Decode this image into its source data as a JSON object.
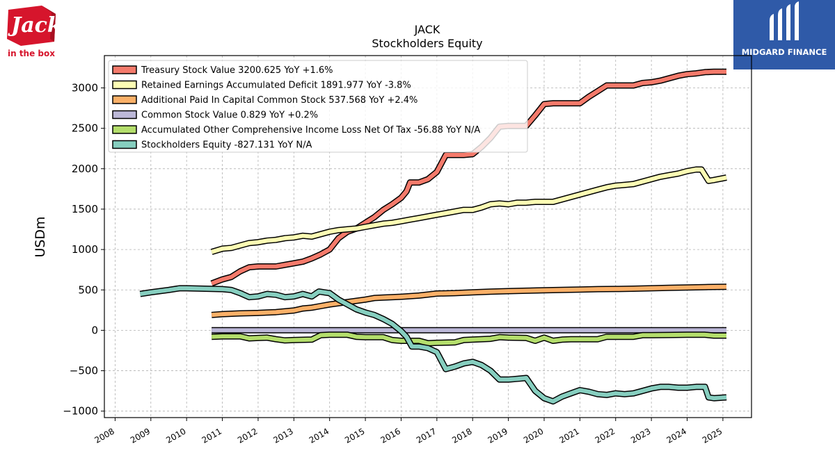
{
  "header": {
    "left_logo_text": "in the box",
    "left_logo_word": "Jack",
    "right_logo_text": "MIDGARD FINANCE"
  },
  "colors": {
    "treasury": "#f47a6b",
    "retained": "#fdfdb4",
    "apic": "#fbb068",
    "common": "#bcb8d8",
    "aoci": "#b4de6c",
    "equity": "#86cebf",
    "outline": "#000000",
    "brand_red": "#d6152c",
    "brand_blue": "#2f5aa8"
  },
  "chart_data": {
    "type": "line",
    "title": "JACK",
    "subtitle": "Stockholders  Equity",
    "ylabel": "USDm",
    "xlabel": "",
    "xlim": [
      2007.7,
      2025.8
    ],
    "ylim": [
      -1080,
      3400
    ],
    "yticks": [
      -1000,
      -500,
      0,
      500,
      1000,
      1500,
      2000,
      2500,
      3000
    ],
    "ytick_labels": [
      "−1000",
      "−500",
      "0",
      "500",
      "1000",
      "1500",
      "2000",
      "2500",
      "3000"
    ],
    "xticks": [
      2008,
      2009,
      2010,
      2011,
      2012,
      2013,
      2014,
      2015,
      2016,
      2017,
      2018,
      2019,
      2020,
      2021,
      2022,
      2023,
      2024,
      2025
    ],
    "grid": true,
    "legend_position": "top-left",
    "series": [
      {
        "name": "Treasury Stock Value",
        "legend": "Treasury Stock Value  3200.625 YoY +1.6%",
        "color_key": "treasury",
        "points": [
          [
            2010.7,
            580
          ],
          [
            2011.0,
            630
          ],
          [
            2011.25,
            660
          ],
          [
            2011.5,
            730
          ],
          [
            2011.75,
            780
          ],
          [
            2012.0,
            790
          ],
          [
            2012.5,
            790
          ],
          [
            2012.75,
            810
          ],
          [
            2013.0,
            830
          ],
          [
            2013.25,
            850
          ],
          [
            2013.5,
            890
          ],
          [
            2013.75,
            940
          ],
          [
            2014.0,
            1000
          ],
          [
            2014.25,
            1140
          ],
          [
            2014.5,
            1220
          ],
          [
            2014.75,
            1260
          ],
          [
            2015.0,
            1330
          ],
          [
            2015.25,
            1400
          ],
          [
            2015.5,
            1490
          ],
          [
            2015.75,
            1560
          ],
          [
            2016.0,
            1640
          ],
          [
            2016.15,
            1720
          ],
          [
            2016.25,
            1830
          ],
          [
            2016.5,
            1830
          ],
          [
            2016.75,
            1870
          ],
          [
            2017.0,
            1960
          ],
          [
            2017.25,
            2170
          ],
          [
            2017.5,
            2170
          ],
          [
            2017.75,
            2170
          ],
          [
            2018.0,
            2180
          ],
          [
            2018.25,
            2270
          ],
          [
            2018.5,
            2380
          ],
          [
            2018.75,
            2520
          ],
          [
            2019.0,
            2530
          ],
          [
            2019.25,
            2530
          ],
          [
            2019.5,
            2530
          ],
          [
            2019.75,
            2660
          ],
          [
            2020.0,
            2800
          ],
          [
            2020.25,
            2810
          ],
          [
            2020.5,
            2810
          ],
          [
            2020.75,
            2810
          ],
          [
            2021.0,
            2810
          ],
          [
            2021.25,
            2890
          ],
          [
            2021.5,
            2960
          ],
          [
            2021.75,
            3030
          ],
          [
            2022.0,
            3030
          ],
          [
            2022.25,
            3030
          ],
          [
            2022.5,
            3030
          ],
          [
            2022.75,
            3060
          ],
          [
            2023.0,
            3070
          ],
          [
            2023.25,
            3090
          ],
          [
            2023.5,
            3120
          ],
          [
            2023.75,
            3150
          ],
          [
            2024.0,
            3170
          ],
          [
            2024.25,
            3180
          ],
          [
            2024.5,
            3195
          ],
          [
            2024.75,
            3200
          ],
          [
            2025.1,
            3200
          ]
        ]
      },
      {
        "name": "Retained Earnings Accumulated Deficit",
        "legend": "Retained Earnings Accumulated Deficit  1891.977 YoY -3.8%",
        "color_key": "retained",
        "points": [
          [
            2010.7,
            970
          ],
          [
            2011.0,
            1010
          ],
          [
            2011.25,
            1020
          ],
          [
            2011.5,
            1050
          ],
          [
            2011.75,
            1080
          ],
          [
            2012.0,
            1090
          ],
          [
            2012.25,
            1110
          ],
          [
            2012.5,
            1120
          ],
          [
            2012.75,
            1140
          ],
          [
            2013.0,
            1150
          ],
          [
            2013.25,
            1170
          ],
          [
            2013.5,
            1160
          ],
          [
            2013.75,
            1190
          ],
          [
            2014.0,
            1220
          ],
          [
            2014.25,
            1240
          ],
          [
            2014.5,
            1250
          ],
          [
            2014.75,
            1260
          ],
          [
            2015.0,
            1280
          ],
          [
            2015.25,
            1300
          ],
          [
            2015.5,
            1320
          ],
          [
            2015.75,
            1330
          ],
          [
            2016.0,
            1350
          ],
          [
            2016.25,
            1370
          ],
          [
            2016.5,
            1390
          ],
          [
            2016.75,
            1410
          ],
          [
            2017.0,
            1430
          ],
          [
            2017.25,
            1450
          ],
          [
            2017.5,
            1470
          ],
          [
            2017.75,
            1490
          ],
          [
            2018.0,
            1490
          ],
          [
            2018.25,
            1520
          ],
          [
            2018.5,
            1560
          ],
          [
            2018.75,
            1570
          ],
          [
            2019.0,
            1560
          ],
          [
            2019.25,
            1580
          ],
          [
            2019.5,
            1580
          ],
          [
            2019.75,
            1590
          ],
          [
            2020.0,
            1590
          ],
          [
            2020.25,
            1590
          ],
          [
            2020.5,
            1620
          ],
          [
            2020.75,
            1650
          ],
          [
            2021.0,
            1680
          ],
          [
            2021.25,
            1710
          ],
          [
            2021.5,
            1740
          ],
          [
            2021.75,
            1770
          ],
          [
            2022.0,
            1790
          ],
          [
            2022.25,
            1800
          ],
          [
            2022.5,
            1810
          ],
          [
            2022.75,
            1840
          ],
          [
            2023.0,
            1870
          ],
          [
            2023.25,
            1900
          ],
          [
            2023.5,
            1920
          ],
          [
            2023.75,
            1940
          ],
          [
            2024.0,
            1970
          ],
          [
            2024.25,
            1990
          ],
          [
            2024.4,
            1990
          ],
          [
            2024.6,
            1850
          ],
          [
            2024.75,
            1860
          ],
          [
            2025.1,
            1890
          ]
        ]
      },
      {
        "name": "Additional Paid In Capital Common Stock",
        "legend": "Additional Paid In Capital Common Stock  537.568 YoY +2.4%",
        "color_key": "apic",
        "points": [
          [
            2010.7,
            190
          ],
          [
            2011.0,
            200
          ],
          [
            2011.5,
            210
          ],
          [
            2012.0,
            215
          ],
          [
            2012.5,
            225
          ],
          [
            2013.0,
            245
          ],
          [
            2013.25,
            270
          ],
          [
            2013.5,
            280
          ],
          [
            2013.75,
            300
          ],
          [
            2014.0,
            320
          ],
          [
            2014.5,
            350
          ],
          [
            2015.0,
            380
          ],
          [
            2015.25,
            400
          ],
          [
            2015.5,
            405
          ],
          [
            2016.0,
            415
          ],
          [
            2016.5,
            430
          ],
          [
            2017.0,
            455
          ],
          [
            2017.5,
            460
          ],
          [
            2018.0,
            470
          ],
          [
            2018.5,
            478
          ],
          [
            2019.0,
            485
          ],
          [
            2019.5,
            490
          ],
          [
            2020.0,
            495
          ],
          [
            2020.5,
            500
          ],
          [
            2021.0,
            505
          ],
          [
            2021.5,
            510
          ],
          [
            2022.0,
            512
          ],
          [
            2022.5,
            515
          ],
          [
            2023.0,
            520
          ],
          [
            2023.5,
            525
          ],
          [
            2024.0,
            530
          ],
          [
            2024.5,
            535
          ],
          [
            2025.1,
            538
          ]
        ]
      },
      {
        "name": "Common Stock Value",
        "legend": "Common Stock Value  0.829 YoY +0.2%",
        "color_key": "common",
        "points": [
          [
            2010.7,
            1
          ],
          [
            2025.1,
            1
          ]
        ]
      },
      {
        "name": "Accumulated Other Comprehensive Income Loss Net Of Tax",
        "legend": "Accumulated Other Comprehensive Income Loss Net Of Tax  -56.88 YoY N/A",
        "color_key": "aoci",
        "points": [
          [
            2010.7,
            -80
          ],
          [
            2011.0,
            -75
          ],
          [
            2011.5,
            -75
          ],
          [
            2011.75,
            -100
          ],
          [
            2012.0,
            -95
          ],
          [
            2012.25,
            -90
          ],
          [
            2012.5,
            -110
          ],
          [
            2012.75,
            -125
          ],
          [
            2013.0,
            -120
          ],
          [
            2013.5,
            -115
          ],
          [
            2013.75,
            -60
          ],
          [
            2014.0,
            -55
          ],
          [
            2014.5,
            -55
          ],
          [
            2014.75,
            -80
          ],
          [
            2015.0,
            -85
          ],
          [
            2015.5,
            -85
          ],
          [
            2015.75,
            -120
          ],
          [
            2016.0,
            -130
          ],
          [
            2016.5,
            -130
          ],
          [
            2016.75,
            -160
          ],
          [
            2017.0,
            -155
          ],
          [
            2017.5,
            -150
          ],
          [
            2017.75,
            -120
          ],
          [
            2018.0,
            -115
          ],
          [
            2018.5,
            -105
          ],
          [
            2018.75,
            -85
          ],
          [
            2019.0,
            -90
          ],
          [
            2019.5,
            -95
          ],
          [
            2019.75,
            -130
          ],
          [
            2020.0,
            -90
          ],
          [
            2020.25,
            -130
          ],
          [
            2020.5,
            -115
          ],
          [
            2020.75,
            -110
          ],
          [
            2021.0,
            -110
          ],
          [
            2021.25,
            -110
          ],
          [
            2021.5,
            -110
          ],
          [
            2021.75,
            -80
          ],
          [
            2022.0,
            -80
          ],
          [
            2022.5,
            -80
          ],
          [
            2022.75,
            -60
          ],
          [
            2023.0,
            -60
          ],
          [
            2023.5,
            -58
          ],
          [
            2024.0,
            -55
          ],
          [
            2024.5,
            -55
          ],
          [
            2024.75,
            -65
          ],
          [
            2025.1,
            -65
          ]
        ]
      },
      {
        "name": "Stockholders Equity",
        "legend": "Stockholders Equity  -827.131 YoY N/A",
        "color_key": "equity",
        "points": [
          [
            2008.7,
            450
          ],
          [
            2009.0,
            470
          ],
          [
            2009.5,
            500
          ],
          [
            2009.8,
            520
          ],
          [
            2010.0,
            520
          ],
          [
            2010.5,
            515
          ],
          [
            2011.0,
            510
          ],
          [
            2011.25,
            500
          ],
          [
            2011.5,
            460
          ],
          [
            2011.75,
            410
          ],
          [
            2012.0,
            420
          ],
          [
            2012.25,
            450
          ],
          [
            2012.5,
            440
          ],
          [
            2012.75,
            410
          ],
          [
            2013.0,
            420
          ],
          [
            2013.25,
            450
          ],
          [
            2013.5,
            420
          ],
          [
            2013.7,
            480
          ],
          [
            2014.0,
            460
          ],
          [
            2014.25,
            380
          ],
          [
            2014.5,
            320
          ],
          [
            2014.75,
            260
          ],
          [
            2015.0,
            220
          ],
          [
            2015.25,
            190
          ],
          [
            2015.5,
            140
          ],
          [
            2015.75,
            80
          ],
          [
            2016.0,
            -10
          ],
          [
            2016.15,
            -80
          ],
          [
            2016.3,
            -200
          ],
          [
            2016.5,
            -200
          ],
          [
            2016.75,
            -220
          ],
          [
            2017.0,
            -270
          ],
          [
            2017.25,
            -480
          ],
          [
            2017.5,
            -450
          ],
          [
            2017.75,
            -410
          ],
          [
            2018.0,
            -390
          ],
          [
            2018.25,
            -430
          ],
          [
            2018.5,
            -500
          ],
          [
            2018.75,
            -610
          ],
          [
            2019.0,
            -610
          ],
          [
            2019.25,
            -600
          ],
          [
            2019.5,
            -590
          ],
          [
            2019.75,
            -750
          ],
          [
            2020.0,
            -840
          ],
          [
            2020.25,
            -880
          ],
          [
            2020.5,
            -820
          ],
          [
            2020.75,
            -780
          ],
          [
            2021.0,
            -740
          ],
          [
            2021.25,
            -760
          ],
          [
            2021.5,
            -790
          ],
          [
            2021.75,
            -800
          ],
          [
            2022.0,
            -780
          ],
          [
            2022.25,
            -790
          ],
          [
            2022.5,
            -780
          ],
          [
            2022.75,
            -750
          ],
          [
            2023.0,
            -720
          ],
          [
            2023.25,
            -700
          ],
          [
            2023.5,
            -700
          ],
          [
            2023.75,
            -710
          ],
          [
            2024.0,
            -710
          ],
          [
            2024.25,
            -700
          ],
          [
            2024.5,
            -700
          ],
          [
            2024.6,
            -830
          ],
          [
            2024.75,
            -840
          ],
          [
            2025.1,
            -830
          ]
        ]
      }
    ]
  }
}
